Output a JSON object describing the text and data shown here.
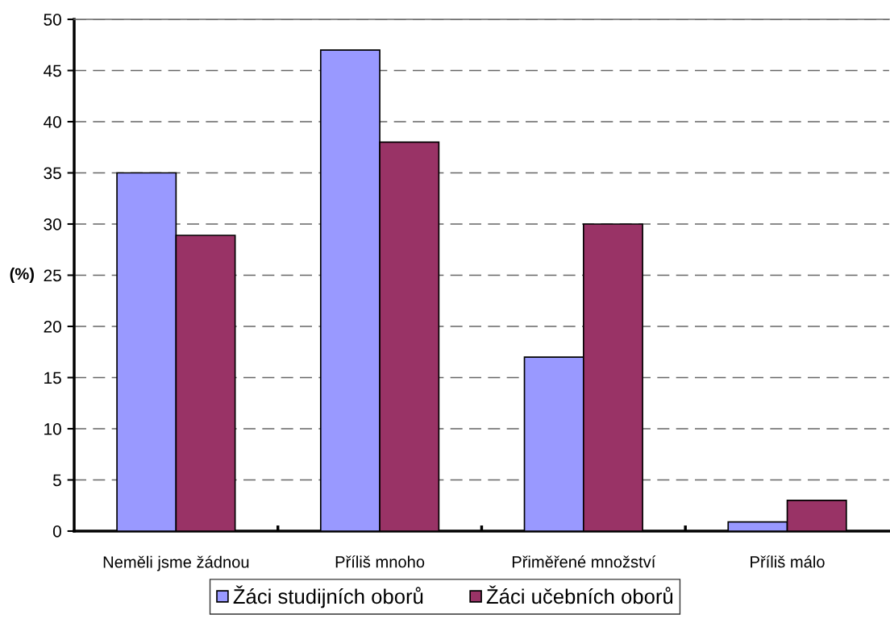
{
  "chart_data": {
    "type": "bar",
    "ylabel": "(%)",
    "categories": [
      "Neměli jsme žádnou",
      "Příliš mnoho",
      "Přiměřené množství",
      "Příliš málo"
    ],
    "series": [
      {
        "name": "Žáci studijních oborů",
        "color": "#9999ff",
        "values": [
          35,
          47,
          17,
          0.9
        ]
      },
      {
        "name": "Žáci učebních oborů",
        "color": "#993366",
        "values": [
          28.9,
          38,
          30,
          3
        ]
      }
    ],
    "ylim": [
      0,
      50
    ],
    "yticks": [
      0,
      5,
      10,
      15,
      20,
      25,
      30,
      35,
      40,
      45,
      50
    ],
    "grid": "y",
    "legend": "bottom"
  }
}
